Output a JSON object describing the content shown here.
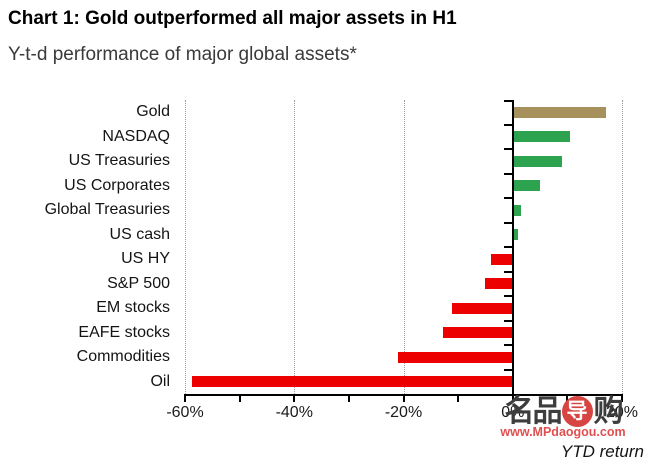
{
  "title": "Chart 1: Gold outperformed all major assets in H1",
  "subtitle": "Y-t-d performance of major global assets*",
  "chart_data": {
    "type": "bar",
    "orientation": "horizontal",
    "title": "Chart 1: Gold outperformed all major assets in H1",
    "subtitle": "Y-t-d performance of major global assets*",
    "categories": [
      "Gold",
      "NASDAQ",
      "US Treasuries",
      "US Corporates",
      "Global Treasuries",
      "US cash",
      "US HY",
      "S&P 500",
      "EM stocks",
      "EAFE stocks",
      "Commodities",
      "Oil"
    ],
    "values": [
      17.0,
      10.5,
      9.0,
      5.0,
      1.5,
      1.0,
      -3.9,
      -5.0,
      -11.2,
      -12.7,
      -21.0,
      -58.8
    ],
    "bar_colors": [
      "gold",
      "green",
      "green",
      "green",
      "green",
      "green",
      "red",
      "red",
      "red",
      "red",
      "red",
      "red"
    ],
    "palette": {
      "gold": "#a6905c",
      "green": "#2ea34f",
      "red": "#ec0000"
    },
    "xlabel": "YTD return",
    "ylabel": "",
    "xlim": [
      -60,
      20
    ],
    "x_tick_labels": [
      {
        "value": -60,
        "label": "-60%"
      },
      {
        "value": -40,
        "label": "-40%"
      },
      {
        "value": -20,
        "label": "-20%"
      },
      {
        "value": 0,
        "label": "0%"
      },
      {
        "value": 20,
        "label": "20%"
      }
    ],
    "minor_tick_step": 10,
    "gridlines_at": [
      -60,
      -40,
      -20,
      20
    ],
    "zero_line_at": 0,
    "grid": "vertical dotted gridlines",
    "legend": "none"
  },
  "watermark": {
    "logo_chars": [
      "名",
      "品",
      "导",
      "购"
    ],
    "url": "www.MPdaogou.com"
  }
}
